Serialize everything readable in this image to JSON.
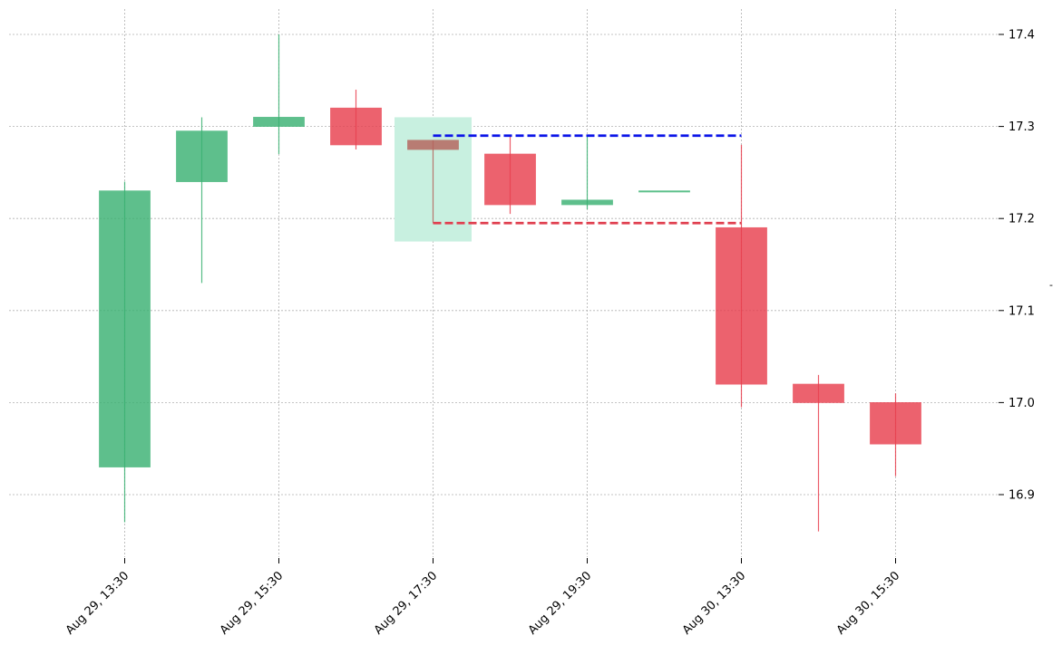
{
  "chart_data": {
    "type": "candlestick",
    "title": "",
    "xlabel": "",
    "ylabel": "",
    "ylim": [
      16.83,
      17.43
    ],
    "yticks": [
      16.9,
      17.0,
      17.1,
      17.2,
      17.3,
      17.4
    ],
    "ytick_labels": [
      "16.9",
      "17.0",
      "17.1",
      "17.2",
      "17.3",
      "17.4"
    ],
    "xtick_labels": [
      "Aug 29, 13:30",
      "Aug 29, 15:30",
      "Aug 29, 17:30",
      "Aug 29, 19:30",
      "Aug 30, 13:30",
      "Aug 30, 15:30"
    ],
    "xtick_candle_index": [
      0,
      2,
      4,
      6,
      8,
      10
    ],
    "grid": true,
    "side_label": "-",
    "colors": {
      "up": "#3bb273",
      "down": "#e8404f",
      "highlight_candle": "#b5635c",
      "highlight_zone": "#c8f0e0",
      "upper_line": "#0b14e8",
      "lower_line": "#e04050"
    },
    "candles": [
      {
        "open": 16.93,
        "high": 17.24,
        "low": 16.87,
        "close": 17.23
      },
      {
        "open": 17.24,
        "high": 17.31,
        "low": 17.13,
        "close": 17.295
      },
      {
        "open": 17.3,
        "high": 17.4,
        "low": 17.27,
        "close": 17.31
      },
      {
        "open": 17.32,
        "high": 17.34,
        "low": 17.275,
        "close": 17.28
      },
      {
        "open": 17.285,
        "high": 17.285,
        "low": 17.195,
        "close": 17.275
      },
      {
        "open": 17.27,
        "high": 17.29,
        "low": 17.205,
        "close": 17.215
      },
      {
        "open": 17.215,
        "high": 17.29,
        "low": 17.21,
        "close": 17.22
      },
      {
        "open": 17.23,
        "high": 17.23,
        "low": 17.23,
        "close": 17.23
      },
      {
        "open": 17.19,
        "high": 17.28,
        "low": 16.995,
        "close": 17.02
      },
      {
        "open": 17.02,
        "high": 17.03,
        "low": 16.86,
        "close": 17.0
      },
      {
        "open": 17.0,
        "high": 17.01,
        "low": 16.92,
        "close": 16.955
      }
    ],
    "highlight": {
      "candle_index": 4,
      "zone_low": 17.175,
      "zone_high": 17.31
    },
    "levels": [
      {
        "name": "upper",
        "value": 17.29,
        "from_index": 4,
        "to_index": 8
      },
      {
        "name": "lower",
        "value": 17.195,
        "from_index": 4,
        "to_index": 8
      }
    ]
  }
}
